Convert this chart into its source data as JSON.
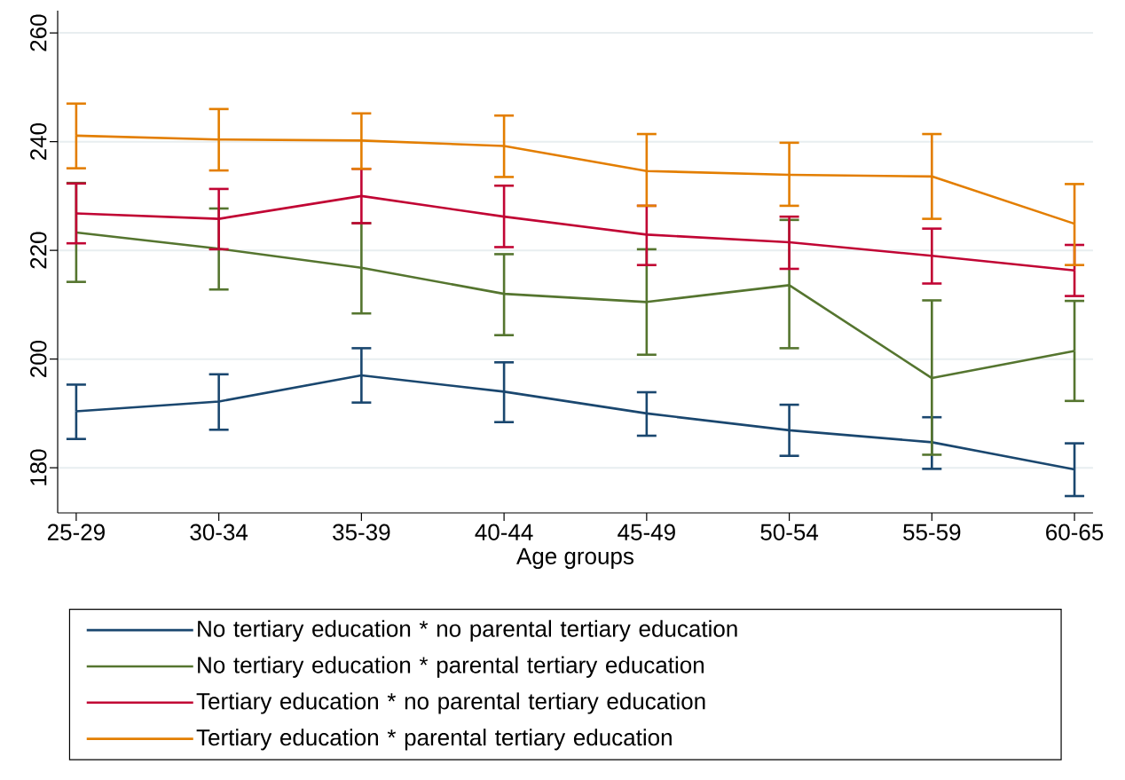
{
  "chart_data": {
    "type": "line",
    "xlabel": "Age groups",
    "categories": [
      "25-29",
      "30-34",
      "35-39",
      "40-44",
      "45-49",
      "50-54",
      "55-59",
      "60-65"
    ],
    "ylim": [
      171.7,
      264.1
    ],
    "yticks": [
      180,
      200,
      220,
      240,
      260
    ],
    "grid": "y",
    "legend": "bottom",
    "marker": "none",
    "line_style": "solid",
    "series": [
      {
        "name": "No  tertiary education * no parental tertiary education",
        "color": "#1a476f",
        "values": [
          190.4,
          192.2,
          197.0,
          194.0,
          190.0,
          186.9,
          184.7,
          179.7
        ],
        "errors": [
          [
            185.3,
            195.3
          ],
          [
            187.0,
            197.2
          ],
          [
            192.0,
            202.0
          ],
          [
            188.4,
            199.4
          ],
          [
            185.9,
            193.9
          ],
          [
            182.2,
            191.6
          ],
          [
            179.8,
            189.3
          ],
          [
            174.8,
            184.5
          ]
        ]
      },
      {
        "name": "No tertiary education *  parental tertiary education",
        "color": "#55752f",
        "values": [
          223.3,
          220.3,
          216.8,
          212.0,
          210.5,
          213.6,
          196.5,
          201.5
        ],
        "errors": [
          [
            214.2,
            232.4
          ],
          [
            212.8,
            227.7
          ],
          [
            208.4,
            225.0
          ],
          [
            204.4,
            219.3
          ],
          [
            200.8,
            220.2
          ],
          [
            202.0,
            225.6
          ],
          [
            182.4,
            210.8
          ],
          [
            192.3,
            210.7
          ]
        ]
      },
      {
        "name": "Tertiary education * no parental tertiary education",
        "color": "#c10534",
        "values": [
          226.8,
          225.8,
          230.0,
          226.2,
          222.9,
          221.5,
          219.0,
          216.3
        ],
        "errors": [
          [
            221.3,
            232.3
          ],
          [
            220.2,
            231.3
          ],
          [
            225.0,
            235.0
          ],
          [
            220.6,
            231.9
          ],
          [
            217.3,
            228.2
          ],
          [
            216.6,
            226.2
          ],
          [
            213.9,
            224.0
          ],
          [
            211.6,
            221.0
          ]
        ]
      },
      {
        "name": "Tertiary education * parental tertiary education",
        "color": "#e37e00",
        "values": [
          241.1,
          240.4,
          240.2,
          239.2,
          234.6,
          233.9,
          233.6,
          224.9
        ],
        "errors": [
          [
            235.1,
            247.0
          ],
          [
            234.7,
            246.0
          ],
          [
            235.0,
            245.2
          ],
          [
            233.5,
            244.8
          ],
          [
            228.2,
            241.4
          ],
          [
            228.2,
            239.8
          ],
          [
            225.8,
            241.4
          ],
          [
            217.3,
            232.2
          ]
        ]
      }
    ]
  }
}
